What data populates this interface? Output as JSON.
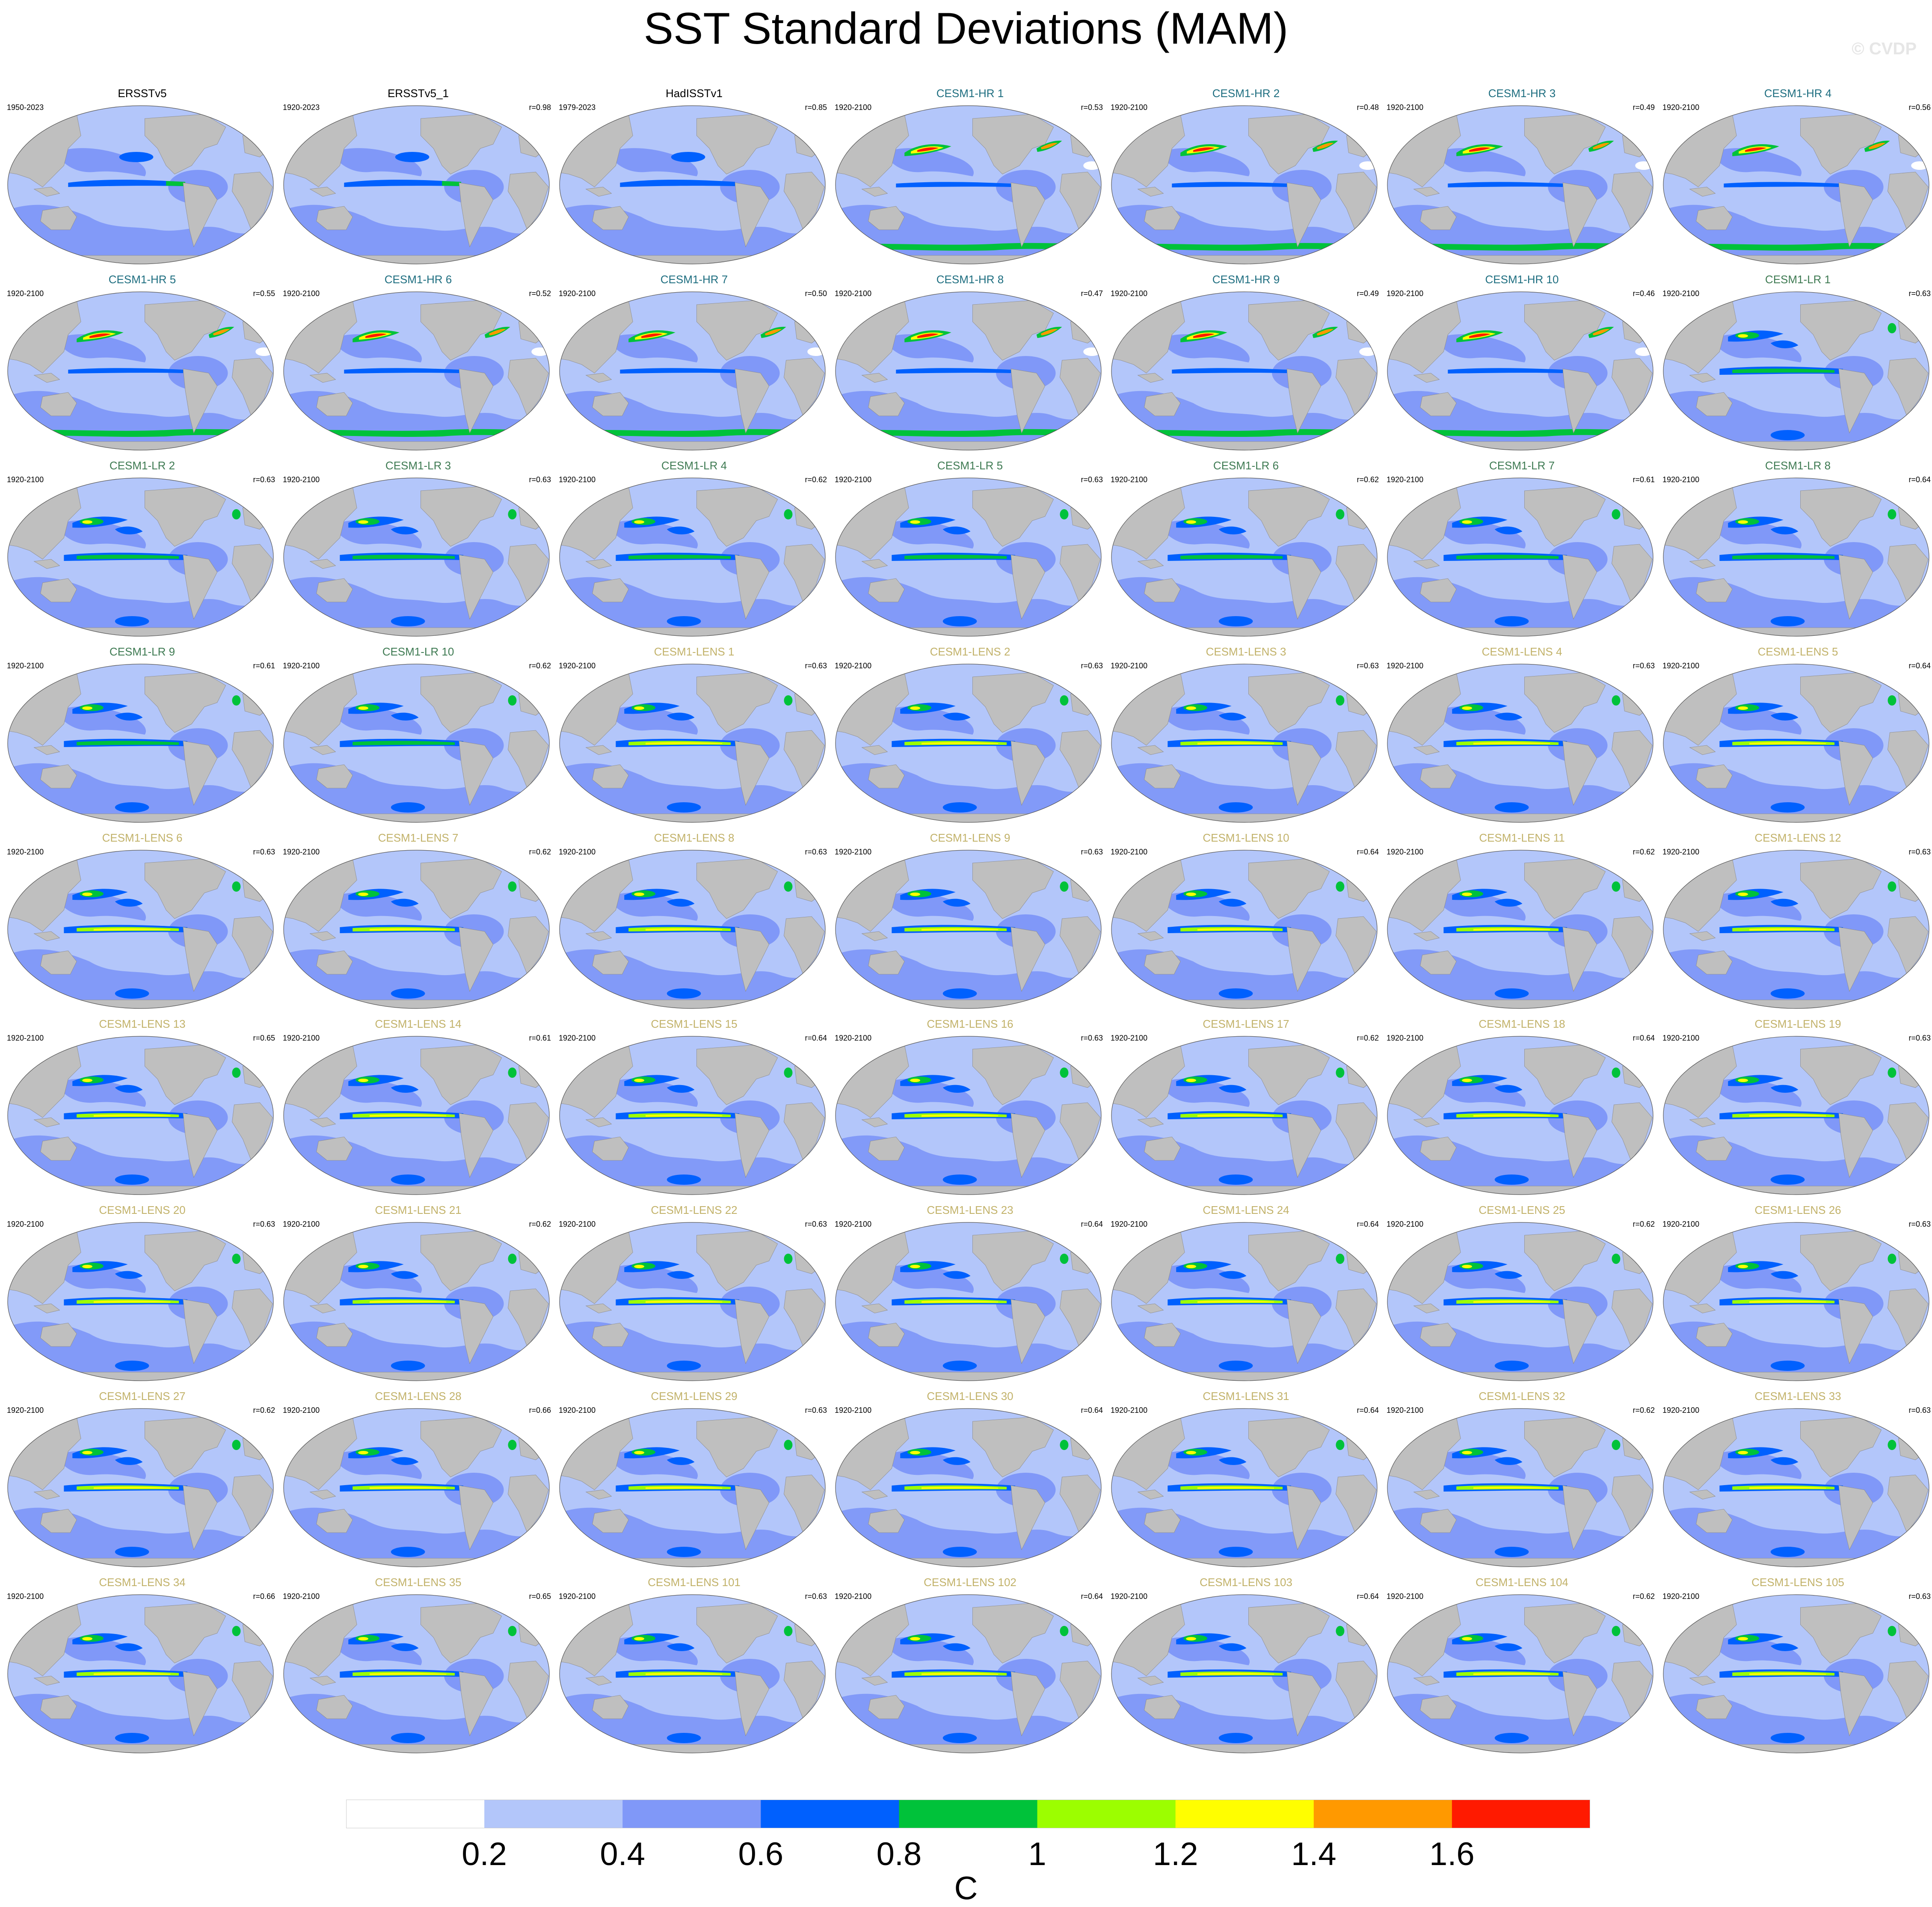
{
  "title": "SST Standard Deviations (MAM)",
  "watermark": "© CVDP",
  "colors": {
    "obs_title": "#000000",
    "hr_title": "#1e6e80",
    "lr_title": "#3e7a52",
    "lens_title": "#c2b26a",
    "land": "#bfbfbf",
    "map_outline": "#555555"
  },
  "chart_data": {
    "type": "heatmap",
    "projection": "global Robinson-style maps",
    "units": "C",
    "colorbar": {
      "bins": [
        {
          "range": [
            0.0,
            0.2
          ],
          "color": "#ffffff"
        },
        {
          "range": [
            0.2,
            0.4
          ],
          "color": "#b3c6fa"
        },
        {
          "range": [
            0.4,
            0.6
          ],
          "color": "#8098f8"
        },
        {
          "range": [
            0.6,
            0.8
          ],
          "color": "#0060fe"
        },
        {
          "range": [
            0.8,
            1.0
          ],
          "color": "#00c23a"
        },
        {
          "range": [
            1.0,
            1.2
          ],
          "color": "#9cfe00"
        },
        {
          "range": [
            1.2,
            1.4
          ],
          "color": "#fffe00"
        },
        {
          "range": [
            1.4,
            1.6
          ],
          "color": "#ff9900"
        },
        {
          "range": [
            1.6,
            1.8
          ],
          "color": "#ff1a00"
        }
      ],
      "tick_labels": [
        "0.2",
        "0.4",
        "0.6",
        "0.8",
        "1",
        "1.2",
        "1.4",
        "1.6"
      ]
    },
    "panels": [
      {
        "name": "ERSSTv5",
        "period": "1950-2023",
        "r": "",
        "group": "obs"
      },
      {
        "name": "ERSSTv5_1",
        "period": "1920-2023",
        "r": "r=0.98",
        "group": "obs"
      },
      {
        "name": "HadISSTv1",
        "period": "1979-2023",
        "r": "r=0.85",
        "group": "obs"
      },
      {
        "name": "CESM1-HR 1",
        "period": "1920-2100",
        "r": "r=0.53",
        "group": "hr"
      },
      {
        "name": "CESM1-HR 2",
        "period": "1920-2100",
        "r": "r=0.48",
        "group": "hr"
      },
      {
        "name": "CESM1-HR 3",
        "period": "1920-2100",
        "r": "r=0.49",
        "group": "hr"
      },
      {
        "name": "CESM1-HR 4",
        "period": "1920-2100",
        "r": "r=0.56",
        "group": "hr"
      },
      {
        "name": "CESM1-HR 5",
        "period": "1920-2100",
        "r": "r=0.55",
        "group": "hr"
      },
      {
        "name": "CESM1-HR 6",
        "period": "1920-2100",
        "r": "r=0.52",
        "group": "hr"
      },
      {
        "name": "CESM1-HR 7",
        "period": "1920-2100",
        "r": "r=0.50",
        "group": "hr"
      },
      {
        "name": "CESM1-HR 8",
        "period": "1920-2100",
        "r": "r=0.47",
        "group": "hr"
      },
      {
        "name": "CESM1-HR 9",
        "period": "1920-2100",
        "r": "r=0.49",
        "group": "hr"
      },
      {
        "name": "CESM1-HR 10",
        "period": "1920-2100",
        "r": "r=0.46",
        "group": "hr"
      },
      {
        "name": "CESM1-LR 1",
        "period": "1920-2100",
        "r": "r=0.63",
        "group": "lr"
      },
      {
        "name": "CESM1-LR 2",
        "period": "1920-2100",
        "r": "r=0.63",
        "group": "lr"
      },
      {
        "name": "CESM1-LR 3",
        "period": "1920-2100",
        "r": "r=0.63",
        "group": "lr"
      },
      {
        "name": "CESM1-LR 4",
        "period": "1920-2100",
        "r": "r=0.62",
        "group": "lr"
      },
      {
        "name": "CESM1-LR 5",
        "period": "1920-2100",
        "r": "r=0.63",
        "group": "lr"
      },
      {
        "name": "CESM1-LR 6",
        "period": "1920-2100",
        "r": "r=0.62",
        "group": "lr"
      },
      {
        "name": "CESM1-LR 7",
        "period": "1920-2100",
        "r": "r=0.61",
        "group": "lr"
      },
      {
        "name": "CESM1-LR 8",
        "period": "1920-2100",
        "r": "r=0.64",
        "group": "lr"
      },
      {
        "name": "CESM1-LR 9",
        "period": "1920-2100",
        "r": "r=0.61",
        "group": "lr"
      },
      {
        "name": "CESM1-LR 10",
        "period": "1920-2100",
        "r": "r=0.62",
        "group": "lr"
      },
      {
        "name": "CESM1-LENS 1",
        "period": "1920-2100",
        "r": "r=0.63",
        "group": "lens"
      },
      {
        "name": "CESM1-LENS 2",
        "period": "1920-2100",
        "r": "r=0.63",
        "group": "lens"
      },
      {
        "name": "CESM1-LENS 3",
        "period": "1920-2100",
        "r": "r=0.63",
        "group": "lens"
      },
      {
        "name": "CESM1-LENS 4",
        "period": "1920-2100",
        "r": "r=0.63",
        "group": "lens"
      },
      {
        "name": "CESM1-LENS 5",
        "period": "1920-2100",
        "r": "r=0.64",
        "group": "lens"
      },
      {
        "name": "CESM1-LENS 6",
        "period": "1920-2100",
        "r": "r=0.63",
        "group": "lens"
      },
      {
        "name": "CESM1-LENS 7",
        "period": "1920-2100",
        "r": "r=0.62",
        "group": "lens"
      },
      {
        "name": "CESM1-LENS 8",
        "period": "1920-2100",
        "r": "r=0.63",
        "group": "lens"
      },
      {
        "name": "CESM1-LENS 9",
        "period": "1920-2100",
        "r": "r=0.63",
        "group": "lens"
      },
      {
        "name": "CESM1-LENS 10",
        "period": "1920-2100",
        "r": "r=0.64",
        "group": "lens"
      },
      {
        "name": "CESM1-LENS 11",
        "period": "1920-2100",
        "r": "r=0.62",
        "group": "lens"
      },
      {
        "name": "CESM1-LENS 12",
        "period": "1920-2100",
        "r": "r=0.63",
        "group": "lens"
      },
      {
        "name": "CESM1-LENS 13",
        "period": "1920-2100",
        "r": "r=0.65",
        "group": "lens"
      },
      {
        "name": "CESM1-LENS 14",
        "period": "1920-2100",
        "r": "r=0.61",
        "group": "lens"
      },
      {
        "name": "CESM1-LENS 15",
        "period": "1920-2100",
        "r": "r=0.64",
        "group": "lens"
      },
      {
        "name": "CESM1-LENS 16",
        "period": "1920-2100",
        "r": "r=0.63",
        "group": "lens"
      },
      {
        "name": "CESM1-LENS 17",
        "period": "1920-2100",
        "r": "r=0.62",
        "group": "lens"
      },
      {
        "name": "CESM1-LENS 18",
        "period": "1920-2100",
        "r": "r=0.64",
        "group": "lens"
      },
      {
        "name": "CESM1-LENS 19",
        "period": "1920-2100",
        "r": "r=0.63",
        "group": "lens"
      },
      {
        "name": "CESM1-LENS 20",
        "period": "1920-2100",
        "r": "r=0.63",
        "group": "lens"
      },
      {
        "name": "CESM1-LENS 21",
        "period": "1920-2100",
        "r": "r=0.62",
        "group": "lens"
      },
      {
        "name": "CESM1-LENS 22",
        "period": "1920-2100",
        "r": "r=0.63",
        "group": "lens"
      },
      {
        "name": "CESM1-LENS 23",
        "period": "1920-2100",
        "r": "r=0.64",
        "group": "lens"
      },
      {
        "name": "CESM1-LENS 24",
        "period": "1920-2100",
        "r": "r=0.64",
        "group": "lens"
      },
      {
        "name": "CESM1-LENS 25",
        "period": "1920-2100",
        "r": "r=0.62",
        "group": "lens"
      },
      {
        "name": "CESM1-LENS 26",
        "period": "1920-2100",
        "r": "r=0.63",
        "group": "lens"
      },
      {
        "name": "CESM1-LENS 27",
        "period": "1920-2100",
        "r": "r=0.62",
        "group": "lens"
      },
      {
        "name": "CESM1-LENS 28",
        "period": "1920-2100",
        "r": "r=0.66",
        "group": "lens"
      },
      {
        "name": "CESM1-LENS 29",
        "period": "1920-2100",
        "r": "r=0.63",
        "group": "lens"
      },
      {
        "name": "CESM1-LENS 30",
        "period": "1920-2100",
        "r": "r=0.64",
        "group": "lens"
      },
      {
        "name": "CESM1-LENS 31",
        "period": "1920-2100",
        "r": "r=0.64",
        "group": "lens"
      },
      {
        "name": "CESM1-LENS 32",
        "period": "1920-2100",
        "r": "r=0.62",
        "group": "lens"
      },
      {
        "name": "CESM1-LENS 33",
        "period": "1920-2100",
        "r": "r=0.63",
        "group": "lens"
      },
      {
        "name": "CESM1-LENS 34",
        "period": "1920-2100",
        "r": "r=0.66",
        "group": "lens"
      },
      {
        "name": "CESM1-LENS 35",
        "period": "1920-2100",
        "r": "r=0.65",
        "group": "lens"
      },
      {
        "name": "CESM1-LENS 101",
        "period": "1920-2100",
        "r": "r=0.63",
        "group": "lens"
      },
      {
        "name": "CESM1-LENS 102",
        "period": "1920-2100",
        "r": "r=0.64",
        "group": "lens"
      },
      {
        "name": "CESM1-LENS 103",
        "period": "1920-2100",
        "r": "r=0.64",
        "group": "lens"
      },
      {
        "name": "CESM1-LENS 104",
        "period": "1920-2100",
        "r": "r=0.62",
        "group": "lens"
      },
      {
        "name": "CESM1-LENS 105",
        "period": "1920-2100",
        "r": "r=0.63",
        "group": "lens"
      }
    ]
  }
}
